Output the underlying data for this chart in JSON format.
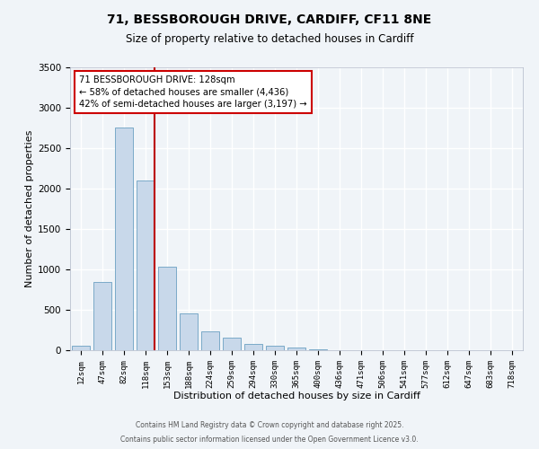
{
  "title": "71, BESSBOROUGH DRIVE, CARDIFF, CF11 8NE",
  "subtitle": "Size of property relative to detached houses in Cardiff",
  "xlabel": "Distribution of detached houses by size in Cardiff",
  "ylabel": "Number of detached properties",
  "bar_color": "#c8d8ea",
  "bar_edge_color": "#7aaac8",
  "background_color": "#f0f4f8",
  "grid_color": "#ffffff",
  "categories": [
    "12sqm",
    "47sqm",
    "82sqm",
    "118sqm",
    "153sqm",
    "188sqm",
    "224sqm",
    "259sqm",
    "294sqm",
    "330sqm",
    "365sqm",
    "400sqm",
    "436sqm",
    "471sqm",
    "506sqm",
    "541sqm",
    "577sqm",
    "612sqm",
    "647sqm",
    "683sqm",
    "718sqm"
  ],
  "values": [
    55,
    840,
    2760,
    2100,
    1030,
    460,
    230,
    155,
    80,
    55,
    30,
    15,
    5,
    0,
    0,
    0,
    0,
    0,
    0,
    0,
    0
  ],
  "vline_index": 3,
  "vline_color": "#bb0000",
  "annotation_text": "71 BESSBOROUGH DRIVE: 128sqm\n← 58% of detached houses are smaller (4,436)\n42% of semi-detached houses are larger (3,197) →",
  "annotation_box_color": "#ffffff",
  "annotation_box_edge_color": "#cc0000",
  "ylim": [
    0,
    3500
  ],
  "footnote1": "Contains HM Land Registry data © Crown copyright and database right 2025.",
  "footnote2": "Contains public sector information licensed under the Open Government Licence v3.0."
}
